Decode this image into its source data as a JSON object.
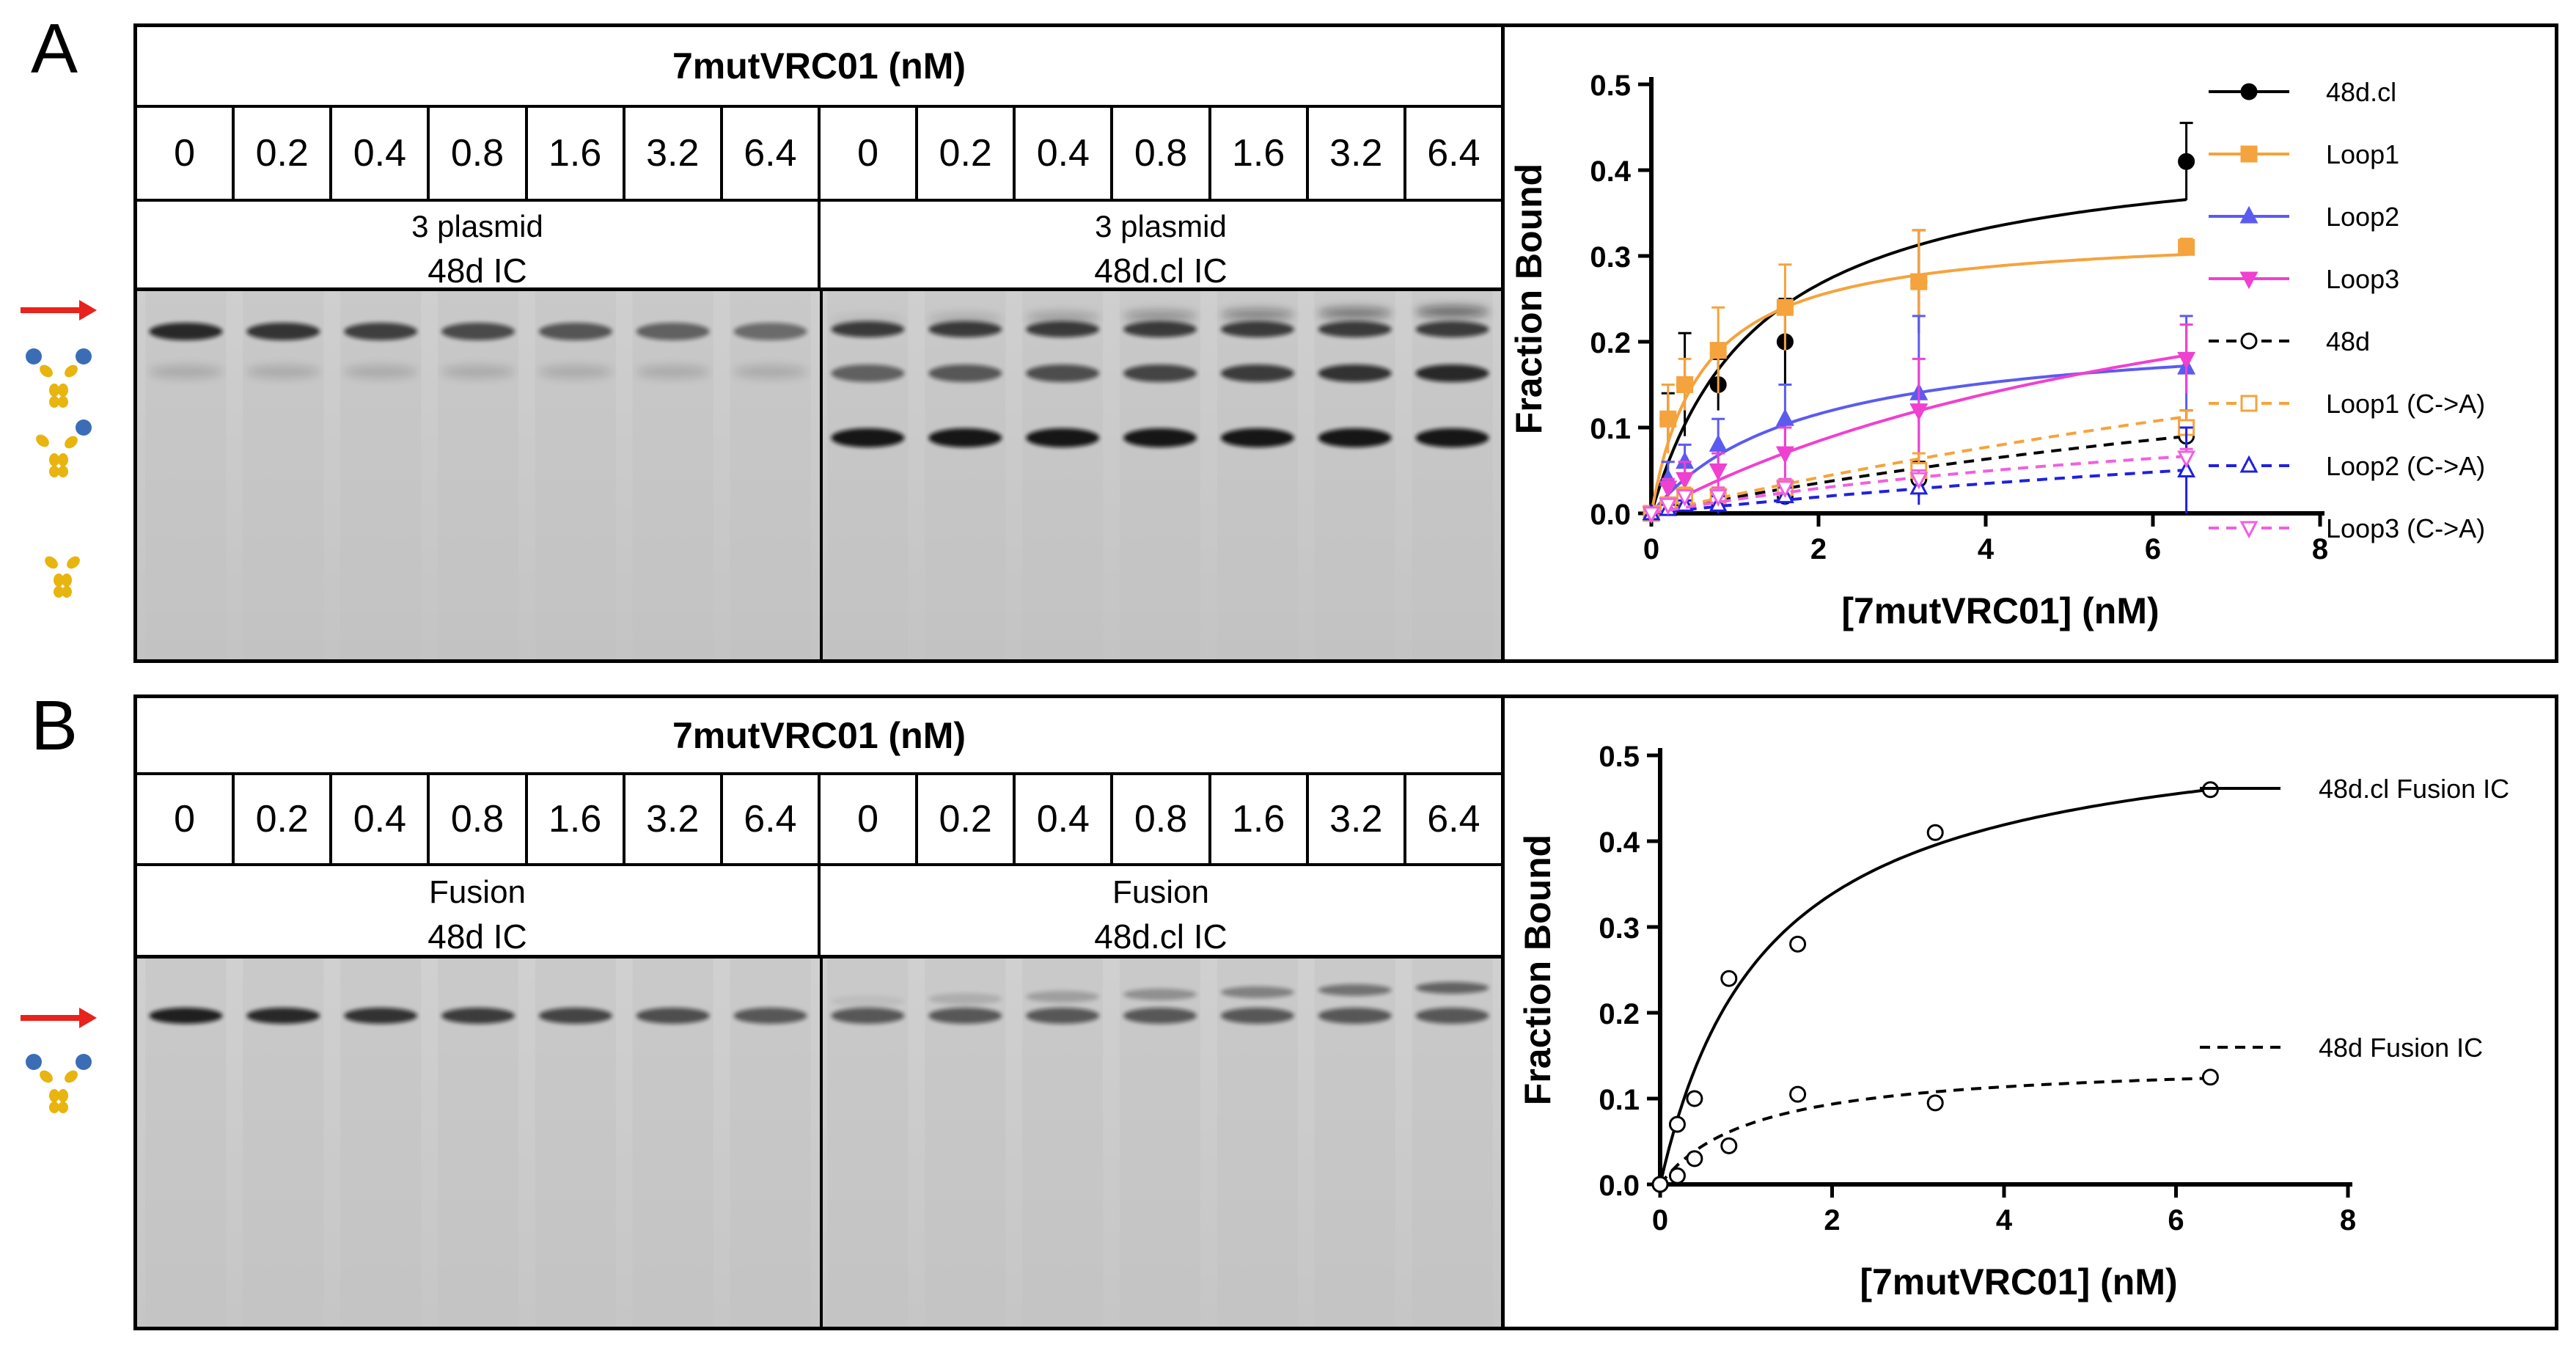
{
  "panels": [
    {
      "letter": "A",
      "header_title": "7mutVRC01 (nM)",
      "lanes": [
        "0",
        "0.2",
        "0.4",
        "0.8",
        "1.6",
        "3.2",
        "6.4",
        "0",
        "0.2",
        "0.4",
        "0.8",
        "1.6",
        "3.2",
        "6.4"
      ],
      "groups": [
        {
          "line1": "3 plasmid",
          "line2": "48d IC"
        },
        {
          "line1": "3 plasmid",
          "line2": "48d.cl IC"
        }
      ]
    },
    {
      "letter": "B",
      "header_title": "7mutVRC01 (nM)",
      "lanes": [
        "0",
        "0.2",
        "0.4",
        "0.8",
        "1.6",
        "3.2",
        "6.4",
        "0",
        "0.2",
        "0.4",
        "0.8",
        "1.6",
        "3.2",
        "6.4"
      ],
      "groups": [
        {
          "line1": "Fusion",
          "line2": "48d IC"
        },
        {
          "line1": "Fusion",
          "line2": "48d.cl IC"
        }
      ]
    }
  ],
  "chart_data": [
    {
      "type": "line",
      "xlabel": "[7mutVRC01] (nM)",
      "ylabel": "Fraction Bound",
      "xlim": [
        0,
        8
      ],
      "ylim": [
        0,
        0.5
      ],
      "xticks": [
        "0",
        "2",
        "4",
        "6",
        "8"
      ],
      "yticks": [
        "0.0",
        "0.1",
        "0.2",
        "0.3",
        "0.4",
        "0.5"
      ],
      "legend_position": "right",
      "x": [
        0,
        0.2,
        0.4,
        0.8,
        1.6,
        3.2,
        6.4
      ],
      "series": [
        {
          "name": "48d.cl",
          "color": "#000000",
          "style": "solid",
          "marker": "circle",
          "values": [
            0.0,
            0.11,
            0.15,
            0.15,
            0.2,
            0.27,
            0.41
          ],
          "errors": [
            0.0,
            0.03,
            0.06,
            0.03,
            0.05,
            0.06,
            0.045
          ],
          "fit_bmax": 0.44,
          "fit_kd": 1.3
        },
        {
          "name": "Loop1",
          "color": "#F5A33D",
          "style": "solid",
          "marker": "square",
          "values": [
            0.0,
            0.11,
            0.15,
            0.19,
            0.24,
            0.27,
            0.31
          ],
          "errors": [
            0.0,
            0.04,
            0.03,
            0.05,
            0.05,
            0.06,
            0.01
          ],
          "fit_bmax": 0.33,
          "fit_kd": 0.6
        },
        {
          "name": "Loop2",
          "color": "#5B5BF0",
          "style": "solid",
          "marker": "triangle-up",
          "values": [
            0.0,
            0.04,
            0.06,
            0.08,
            0.11,
            0.14,
            0.17
          ],
          "errors": [
            0.0,
            0.02,
            0.02,
            0.03,
            0.04,
            0.09,
            0.06
          ],
          "fit_bmax": 0.22,
          "fit_kd": 1.8
        },
        {
          "name": "Loop3",
          "color": "#F040D0",
          "style": "solid",
          "marker": "triangle-down",
          "values": [
            0.0,
            0.03,
            0.04,
            0.05,
            0.07,
            0.12,
            0.18
          ],
          "errors": [
            0.0,
            0.01,
            0.02,
            0.02,
            0.03,
            0.06,
            0.04
          ],
          "fit_bmax": 0.4,
          "fit_kd": 7.5
        },
        {
          "name": "48d",
          "color": "#000000",
          "style": "dashed",
          "marker": "open-circle",
          "values": [
            0.0,
            0.01,
            0.01,
            0.015,
            0.02,
            0.04,
            0.09
          ],
          "errors": [
            0.0,
            0.005,
            0.01,
            0.01,
            0.01,
            0.02,
            0.03
          ],
          "fit_bmax": 0.3,
          "fit_kd": 15
        },
        {
          "name": "Loop1 (C->A)",
          "color": "#F5A33D",
          "style": "dashed",
          "marker": "open-square",
          "values": [
            0.0,
            0.01,
            0.02,
            0.02,
            0.03,
            0.05,
            0.1
          ],
          "errors": [
            0.0,
            0.005,
            0.01,
            0.01,
            0.01,
            0.02,
            0.02
          ],
          "fit_bmax": 0.5,
          "fit_kd": 22
        },
        {
          "name": "Loop2 (C->A)",
          "color": "#2020E0",
          "style": "dashed",
          "marker": "open-triangle-up",
          "values": [
            0.0,
            0.005,
            0.01,
            0.01,
            0.02,
            0.03,
            0.05
          ],
          "errors": [
            0.0,
            0.005,
            0.005,
            0.01,
            0.01,
            0.02,
            0.05
          ],
          "fit_bmax": 0.2,
          "fit_kd": 19
        },
        {
          "name": "Loop3 (C->A)",
          "color": "#F060E0",
          "style": "dashed",
          "marker": "open-triangle-down",
          "values": [
            0.0,
            0.01,
            0.02,
            0.02,
            0.03,
            0.04,
            0.065
          ],
          "errors": [
            0.0,
            0.005,
            0.005,
            0.01,
            0.01,
            0.01,
            0.01
          ],
          "fit_bmax": 0.16,
          "fit_kd": 9
        }
      ]
    },
    {
      "type": "line",
      "xlabel": "[7mutVRC01] (nM)",
      "ylabel": "Fraction Bound",
      "xlim": [
        0,
        8
      ],
      "ylim": [
        0,
        0.5
      ],
      "xticks": [
        "0",
        "2",
        "4",
        "6",
        "8"
      ],
      "yticks": [
        "0.0",
        "0.1",
        "0.2",
        "0.3",
        "0.4",
        "0.5"
      ],
      "legend_position": "right",
      "x": [
        0,
        0.2,
        0.4,
        0.8,
        1.6,
        3.2,
        6.4
      ],
      "series": [
        {
          "name": "48d.cl Fusion IC",
          "color": "#000000",
          "style": "solid",
          "marker": "open-circle",
          "values": [
            0.0,
            0.07,
            0.1,
            0.24,
            0.28,
            0.41,
            0.46
          ],
          "errors": [
            0,
            0,
            0,
            0,
            0,
            0,
            0
          ],
          "fit_bmax": 0.55,
          "fit_kd": 1.25
        },
        {
          "name": "48d Fusion IC",
          "color": "#000000",
          "style": "dashed",
          "marker": "open-circle",
          "values": [
            0.0,
            0.01,
            0.03,
            0.045,
            0.105,
            0.095,
            0.125
          ],
          "errors": [
            0,
            0,
            0,
            0,
            0,
            0,
            0
          ],
          "fit_bmax": 0.145,
          "fit_kd": 1.1
        }
      ]
    }
  ]
}
